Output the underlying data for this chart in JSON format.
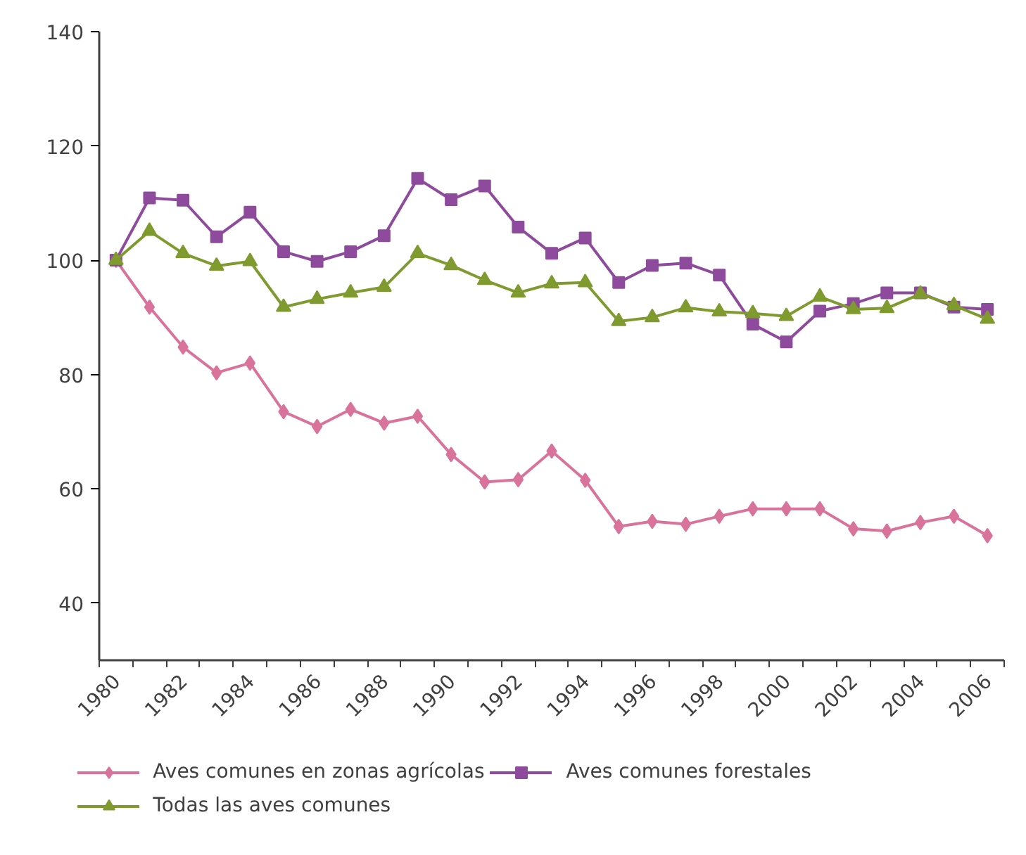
{
  "chart_data": {
    "type": "line",
    "categories": [
      "1980",
      null,
      "1982",
      null,
      "1984",
      null,
      "1986",
      null,
      "1988",
      null,
      "1990",
      null,
      "1992",
      null,
      "1994",
      null,
      "1996",
      null,
      "1998",
      null,
      "2000",
      null,
      "2002",
      null,
      "2004",
      null,
      "2006"
    ],
    "series": [
      {
        "name": "Aves comunes en zonas agrícolas",
        "color": "#d9739b",
        "marker": "diamond",
        "values": [
          100,
          91.8,
          84.8,
          80.3,
          82.0,
          73.5,
          70.9,
          73.9,
          71.5,
          72.7,
          66.0,
          61.2,
          61.6,
          66.6,
          61.5,
          53.4,
          54.3,
          53.8,
          55.2,
          56.5,
          56.5,
          56.5,
          53.0,
          52.6,
          54.1,
          55.2,
          51.8
        ]
      },
      {
        "name": "Aves comunes forestales",
        "color": "#8e4a9c",
        "marker": "square",
        "values": [
          100,
          110.9,
          110.5,
          104.1,
          108.4,
          101.5,
          99.8,
          101.5,
          104.3,
          114.3,
          110.6,
          113.0,
          105.8,
          101.2,
          103.9,
          96.1,
          99.1,
          99.5,
          97.4,
          88.8,
          85.7,
          91.1,
          92.4,
          94.3,
          94.3,
          91.8,
          91.4
        ]
      },
      {
        "name": "Todas las aves comunes",
        "color": "#7f9a2e",
        "marker": "triangle",
        "values": [
          100,
          105.1,
          101.2,
          99.0,
          99.8,
          91.8,
          93.2,
          94.3,
          95.3,
          101.2,
          99.1,
          96.5,
          94.3,
          95.9,
          96.1,
          89.3,
          90.0,
          91.7,
          91.0,
          90.7,
          90.2,
          93.6,
          91.4,
          91.6,
          94.1,
          92.1,
          89.7
        ]
      }
    ],
    "ylim": [
      30,
      140
    ],
    "yticks": [
      40,
      60,
      80,
      100,
      120,
      140
    ],
    "grid": false,
    "legend": "bottom",
    "line_style": "solid"
  }
}
